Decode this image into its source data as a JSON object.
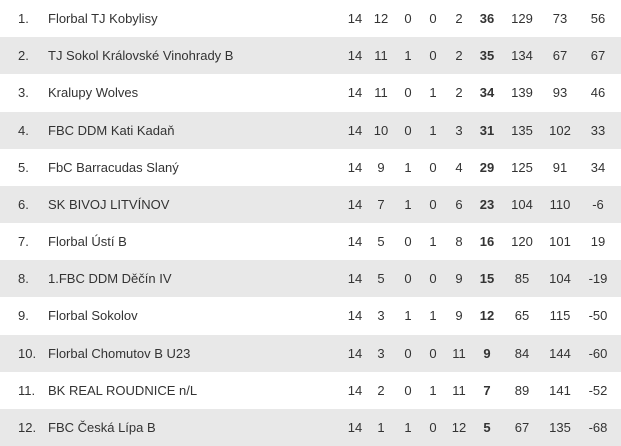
{
  "table": {
    "rows": [
      [
        "1.",
        "Florbal TJ Kobylisy",
        14,
        12,
        0,
        0,
        2,
        36,
        129,
        73,
        56
      ],
      [
        "2.",
        "TJ Sokol Královské Vinohrady B",
        14,
        11,
        1,
        0,
        2,
        35,
        134,
        67,
        67
      ],
      [
        "3.",
        "Kralupy Wolves",
        14,
        11,
        0,
        1,
        2,
        34,
        139,
        93,
        46
      ],
      [
        "4.",
        "FBC DDM Kati Kadaň",
        14,
        10,
        0,
        1,
        3,
        31,
        135,
        102,
        33
      ],
      [
        "5.",
        "FbC Barracudas Slaný",
        14,
        9,
        1,
        0,
        4,
        29,
        125,
        91,
        34
      ],
      [
        "6.",
        "SK BIVOJ LITVÍNOV",
        14,
        7,
        1,
        0,
        6,
        23,
        104,
        110,
        -6
      ],
      [
        "7.",
        "Florbal Ústí B",
        14,
        5,
        0,
        1,
        8,
        16,
        120,
        101,
        19
      ],
      [
        "8.",
        "1.FBC DDM Děčín IV",
        14,
        5,
        0,
        0,
        9,
        15,
        85,
        104,
        -19
      ],
      [
        "9.",
        "Florbal Sokolov",
        14,
        3,
        1,
        1,
        9,
        12,
        65,
        115,
        -50
      ],
      [
        "10.",
        "Florbal Chomutov B U23",
        14,
        3,
        0,
        0,
        11,
        9,
        84,
        144,
        -60
      ],
      [
        "11.",
        "BK REAL ROUDNICE n/L",
        14,
        2,
        0,
        1,
        11,
        7,
        89,
        141,
        -52
      ],
      [
        "12.",
        "FBC Česká Lípa B",
        14,
        1,
        1,
        0,
        12,
        5,
        67,
        135,
        -68
      ]
    ]
  }
}
